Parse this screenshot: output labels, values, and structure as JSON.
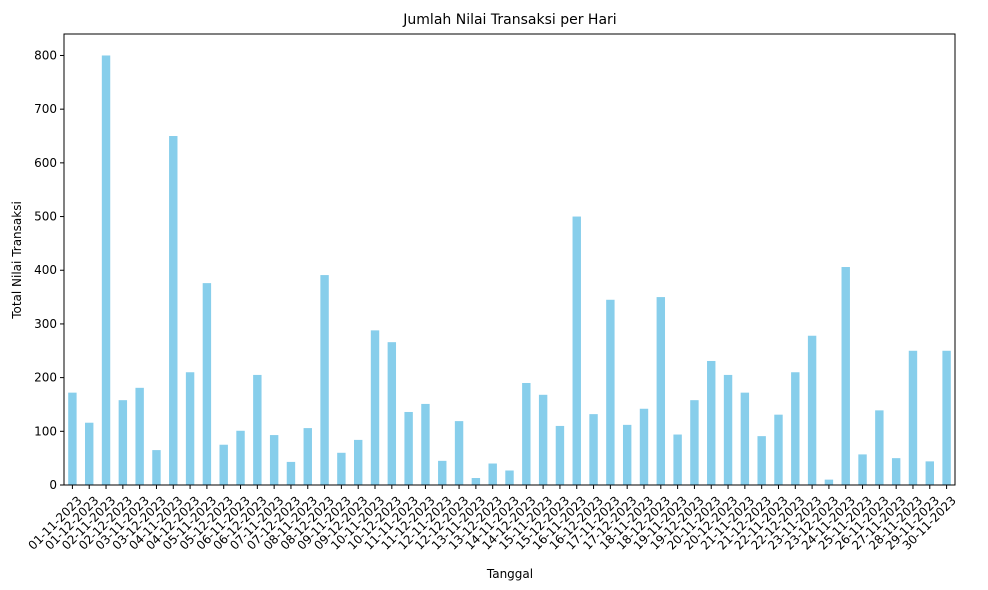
{
  "chart_data": {
    "type": "bar",
    "title": "Jumlah Nilai Transaksi per Hari",
    "xlabel": "Tanggal",
    "ylabel": "Total Nilai Transaksi",
    "ylim": [
      0,
      840
    ],
    "yticks": [
      0,
      100,
      200,
      300,
      400,
      500,
      600,
      700,
      800
    ],
    "grid": false,
    "bar_color": "#87ceeb",
    "categories": [
      "01-11-2023",
      "01-12-2023",
      "02-11-2023",
      "02-12-2023",
      "03-11-2023",
      "03-12-2023",
      "04-11-2023",
      "04-12-2023",
      "05-11-2023",
      "05-12-2023",
      "06-11-2023",
      "06-12-2023",
      "07-11-2023",
      "07-12-2023",
      "08-11-2023",
      "08-12-2023",
      "09-11-2023",
      "09-12-2023",
      "10-11-2023",
      "10-12-2023",
      "11-11-2023",
      "11-12-2023",
      "12-11-2023",
      "12-12-2023",
      "13-11-2023",
      "13-12-2023",
      "14-11-2023",
      "14-12-2023",
      "15-11-2023",
      "15-12-2023",
      "16-11-2023",
      "16-12-2023",
      "17-11-2023",
      "17-12-2023",
      "18-11-2023",
      "18-12-2023",
      "19-11-2023",
      "19-12-2023",
      "20-11-2023",
      "20-12-2023",
      "21-11-2023",
      "21-12-2023",
      "22-11-2023",
      "22-12-2023",
      "23-11-2023",
      "23-12-2023",
      "24-11-2023",
      "25-11-2023",
      "26-11-2023",
      "27-11-2023",
      "28-11-2023",
      "29-11-2023",
      "30-11-2023"
    ],
    "values": [
      172,
      116,
      800,
      158,
      181,
      65,
      650,
      210,
      376,
      75,
      101,
      205,
      93,
      43,
      106,
      391,
      60,
      84,
      288,
      266,
      136,
      151,
      45,
      119,
      13,
      40,
      27,
      190,
      168,
      110,
      500,
      132,
      345,
      112,
      142,
      350,
      94,
      158,
      231,
      205,
      172,
      91,
      131,
      210,
      278,
      10,
      406,
      57,
      139,
      50,
      250,
      44,
      250
    ]
  }
}
